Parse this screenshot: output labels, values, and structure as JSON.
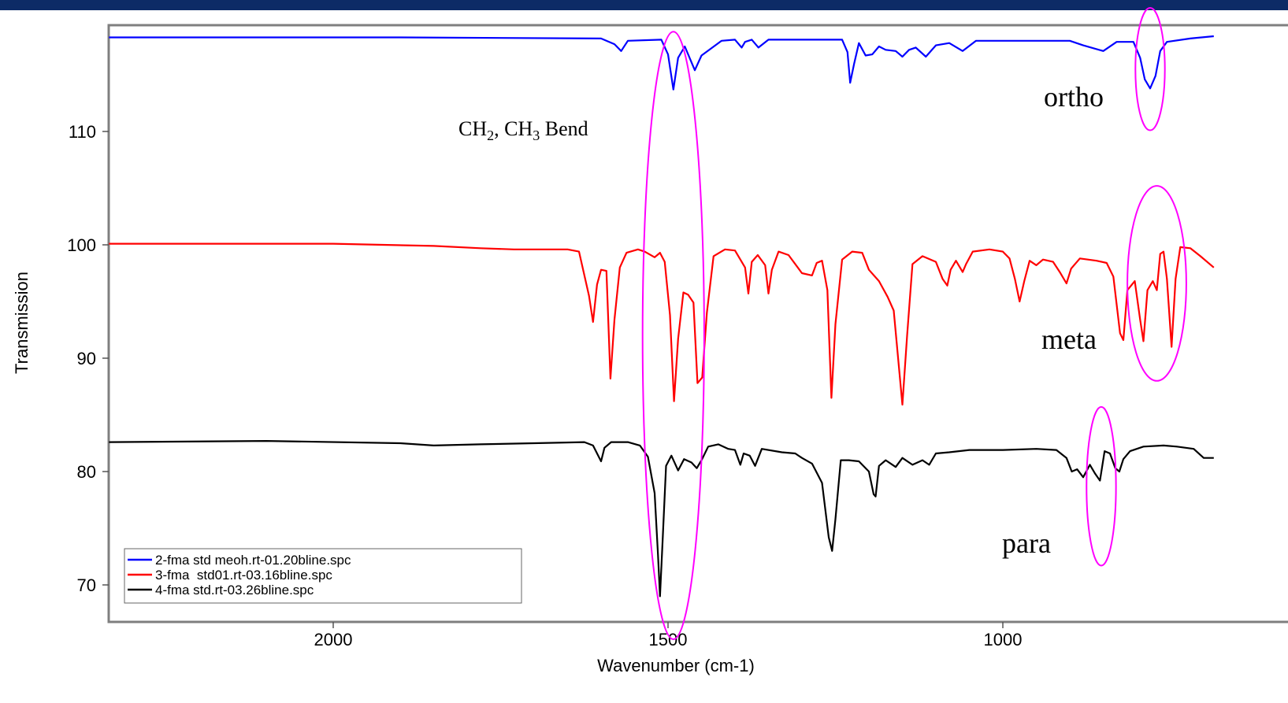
{
  "chart_data": {
    "type": "line",
    "xlabel": "Wavenumber (cm-1)",
    "ylabel": "Transmission",
    "xlim": [
      2335,
      685
    ],
    "ylim": [
      67,
      120
    ],
    "x_ticks": [
      2000,
      1500,
      1000
    ],
    "y_ticks": [
      70,
      80,
      90,
      100,
      110
    ],
    "legend_position": "bottom-left",
    "annotation": "CH2, CH3 Bend",
    "labels": {
      "ortho": "ortho",
      "meta": "meta",
      "para": "para"
    },
    "series": [
      {
        "name": "2-fma std meoh.rt-01.20bline.spc",
        "color": "#0000ff",
        "points": [
          [
            2335,
            118.3
          ],
          [
            1900,
            118.3
          ],
          [
            1600,
            118.2
          ],
          [
            1580,
            117.7
          ],
          [
            1570,
            117.1
          ],
          [
            1560,
            118.0
          ],
          [
            1510,
            118.1
          ],
          [
            1500,
            116.8
          ],
          [
            1492,
            113.7
          ],
          [
            1485,
            116.5
          ],
          [
            1475,
            117.5
          ],
          [
            1460,
            115.4
          ],
          [
            1450,
            116.7
          ],
          [
            1420,
            118.0
          ],
          [
            1400,
            118.1
          ],
          [
            1390,
            117.4
          ],
          [
            1385,
            117.9
          ],
          [
            1375,
            118.1
          ],
          [
            1365,
            117.4
          ],
          [
            1350,
            118.1
          ],
          [
            1240,
            118.1
          ],
          [
            1232,
            117.0
          ],
          [
            1228,
            114.3
          ],
          [
            1222,
            116.0
          ],
          [
            1215,
            117.8
          ],
          [
            1205,
            116.7
          ],
          [
            1195,
            116.8
          ],
          [
            1185,
            117.5
          ],
          [
            1175,
            117.2
          ],
          [
            1160,
            117.1
          ],
          [
            1150,
            116.6
          ],
          [
            1140,
            117.2
          ],
          [
            1130,
            117.4
          ],
          [
            1115,
            116.6
          ],
          [
            1100,
            117.6
          ],
          [
            1080,
            117.8
          ],
          [
            1060,
            117.1
          ],
          [
            1040,
            118.0
          ],
          [
            900,
            118.0
          ],
          [
            880,
            117.6
          ],
          [
            850,
            117.1
          ],
          [
            830,
            117.9
          ],
          [
            805,
            117.9
          ],
          [
            795,
            116.5
          ],
          [
            788,
            114.6
          ],
          [
            780,
            113.8
          ],
          [
            772,
            114.9
          ],
          [
            765,
            117.1
          ],
          [
            755,
            117.9
          ],
          [
            720,
            118.2
          ],
          [
            685,
            118.4
          ]
        ]
      },
      {
        "name": "3-fma  std01.rt-03.16bline.spc",
        "color": "#ff0000",
        "points": [
          [
            2335,
            100.1
          ],
          [
            2000,
            100.1
          ],
          [
            1850,
            99.9
          ],
          [
            1780,
            99.7
          ],
          [
            1730,
            99.6
          ],
          [
            1650,
            99.6
          ],
          [
            1633,
            99.4
          ],
          [
            1618,
            95.5
          ],
          [
            1612,
            93.2
          ],
          [
            1606,
            96.5
          ],
          [
            1600,
            97.8
          ],
          [
            1592,
            97.7
          ],
          [
            1586,
            88.2
          ],
          [
            1580,
            93.4
          ],
          [
            1572,
            98.0
          ],
          [
            1562,
            99.3
          ],
          [
            1545,
            99.6
          ],
          [
            1535,
            99.4
          ],
          [
            1520,
            98.9
          ],
          [
            1512,
            99.3
          ],
          [
            1505,
            98.5
          ],
          [
            1497,
            93.8
          ],
          [
            1491,
            86.2
          ],
          [
            1485,
            91.7
          ],
          [
            1477,
            95.8
          ],
          [
            1470,
            95.6
          ],
          [
            1462,
            94.9
          ],
          [
            1456,
            87.8
          ],
          [
            1449,
            88.3
          ],
          [
            1442,
            94.0
          ],
          [
            1432,
            99.0
          ],
          [
            1415,
            99.6
          ],
          [
            1400,
            99.5
          ],
          [
            1385,
            98.0
          ],
          [
            1380,
            95.7
          ],
          [
            1375,
            98.5
          ],
          [
            1366,
            99.1
          ],
          [
            1355,
            98.2
          ],
          [
            1350,
            95.7
          ],
          [
            1345,
            97.8
          ],
          [
            1335,
            99.4
          ],
          [
            1320,
            99.1
          ],
          [
            1300,
            97.5
          ],
          [
            1285,
            97.3
          ],
          [
            1278,
            98.4
          ],
          [
            1270,
            98.6
          ],
          [
            1262,
            96.0
          ],
          [
            1256,
            86.5
          ],
          [
            1250,
            93.0
          ],
          [
            1240,
            98.7
          ],
          [
            1225,
            99.4
          ],
          [
            1210,
            99.3
          ],
          [
            1200,
            97.8
          ],
          [
            1185,
            96.8
          ],
          [
            1172,
            95.4
          ],
          [
            1163,
            94.2
          ],
          [
            1150,
            85.9
          ],
          [
            1143,
            92.0
          ],
          [
            1135,
            98.3
          ],
          [
            1120,
            99.0
          ],
          [
            1100,
            98.5
          ],
          [
            1090,
            97.0
          ],
          [
            1083,
            96.4
          ],
          [
            1078,
            97.8
          ],
          [
            1070,
            98.6
          ],
          [
            1060,
            97.6
          ],
          [
            1055,
            98.3
          ],
          [
            1045,
            99.4
          ],
          [
            1020,
            99.6
          ],
          [
            1000,
            99.4
          ],
          [
            990,
            98.8
          ],
          [
            982,
            97.0
          ],
          [
            975,
            95.0
          ],
          [
            968,
            96.8
          ],
          [
            960,
            98.6
          ],
          [
            950,
            98.2
          ],
          [
            940,
            98.7
          ],
          [
            925,
            98.5
          ],
          [
            915,
            97.6
          ],
          [
            905,
            96.6
          ],
          [
            898,
            97.9
          ],
          [
            885,
            98.8
          ],
          [
            860,
            98.6
          ],
          [
            845,
            98.4
          ],
          [
            835,
            97.2
          ],
          [
            825,
            92.2
          ],
          [
            820,
            91.6
          ],
          [
            814,
            96.0
          ],
          [
            803,
            96.8
          ],
          [
            795,
            93.4
          ],
          [
            790,
            91.5
          ],
          [
            784,
            96.0
          ],
          [
            776,
            96.8
          ],
          [
            770,
            96.0
          ],
          [
            765,
            99.2
          ],
          [
            760,
            99.4
          ],
          [
            755,
            97.0
          ],
          [
            748,
            91.0
          ],
          [
            742,
            97.0
          ],
          [
            735,
            99.8
          ],
          [
            720,
            99.7
          ],
          [
            705,
            99.0
          ],
          [
            685,
            98.0
          ]
        ]
      },
      {
        "name": "4-fma std.rt-03.26bline.spc",
        "color": "#000000",
        "points": [
          [
            2335,
            82.6
          ],
          [
            2100,
            82.7
          ],
          [
            1900,
            82.5
          ],
          [
            1850,
            82.3
          ],
          [
            1780,
            82.4
          ],
          [
            1700,
            82.5
          ],
          [
            1625,
            82.6
          ],
          [
            1612,
            82.3
          ],
          [
            1600,
            80.9
          ],
          [
            1595,
            82.1
          ],
          [
            1585,
            82.6
          ],
          [
            1560,
            82.6
          ],
          [
            1542,
            82.3
          ],
          [
            1530,
            81.3
          ],
          [
            1520,
            78.1
          ],
          [
            1515,
            72.6
          ],
          [
            1512,
            69.0
          ],
          [
            1508,
            74.0
          ],
          [
            1503,
            80.5
          ],
          [
            1495,
            81.4
          ],
          [
            1485,
            80.1
          ],
          [
            1476,
            81.1
          ],
          [
            1465,
            80.8
          ],
          [
            1457,
            80.3
          ],
          [
            1450,
            81.0
          ],
          [
            1440,
            82.2
          ],
          [
            1425,
            82.4
          ],
          [
            1410,
            82.0
          ],
          [
            1400,
            81.9
          ],
          [
            1392,
            80.6
          ],
          [
            1387,
            81.6
          ],
          [
            1378,
            81.4
          ],
          [
            1370,
            80.5
          ],
          [
            1360,
            82.0
          ],
          [
            1330,
            81.7
          ],
          [
            1310,
            81.6
          ],
          [
            1300,
            81.2
          ],
          [
            1285,
            80.7
          ],
          [
            1270,
            79.0
          ],
          [
            1260,
            74.2
          ],
          [
            1255,
            73.0
          ],
          [
            1250,
            75.8
          ],
          [
            1242,
            81.0
          ],
          [
            1230,
            81.0
          ],
          [
            1215,
            80.9
          ],
          [
            1200,
            80.0
          ],
          [
            1193,
            78.0
          ],
          [
            1190,
            77.8
          ],
          [
            1185,
            80.5
          ],
          [
            1175,
            81.0
          ],
          [
            1160,
            80.4
          ],
          [
            1150,
            81.2
          ],
          [
            1135,
            80.6
          ],
          [
            1120,
            81.0
          ],
          [
            1110,
            80.6
          ],
          [
            1100,
            81.6
          ],
          [
            1080,
            81.7
          ],
          [
            1050,
            81.9
          ],
          [
            1000,
            81.9
          ],
          [
            950,
            82.0
          ],
          [
            920,
            81.9
          ],
          [
            905,
            81.2
          ],
          [
            897,
            80.0
          ],
          [
            889,
            80.2
          ],
          [
            880,
            79.5
          ],
          [
            870,
            80.6
          ],
          [
            862,
            79.8
          ],
          [
            855,
            79.2
          ],
          [
            848,
            81.8
          ],
          [
            840,
            81.6
          ],
          [
            832,
            80.3
          ],
          [
            826,
            80.0
          ],
          [
            820,
            81.1
          ],
          [
            810,
            81.8
          ],
          [
            790,
            82.2
          ],
          [
            760,
            82.3
          ],
          [
            740,
            82.2
          ],
          [
            715,
            82.0
          ],
          [
            700,
            81.2
          ],
          [
            685,
            81.2
          ]
        ]
      }
    ]
  }
}
